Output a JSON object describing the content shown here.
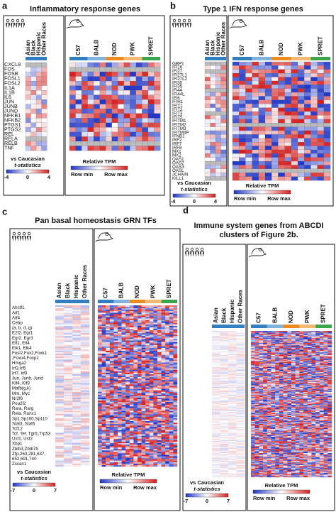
{
  "panels": [
    {
      "letter": "a",
      "title": [
        "Inflammatory response genes"
      ],
      "human_groups": [
        "Asian",
        "Black",
        "Hispanic",
        "Other Races"
      ],
      "mouse_groups": [
        "C57",
        "BALB",
        "NOD",
        "PWK",
        "SPRET"
      ],
      "genes": [
        "CXCL8",
        "FOS",
        "FOSB",
        "FOSL1",
        "FOSL2",
        "IL1A",
        "IL1B",
        "IL6",
        "JUN",
        "JUNB",
        "JUND",
        "NFKB1",
        "NFKB2",
        "PTGS1",
        "PTGS2",
        "REL",
        "RELA",
        "RELB",
        "TNF"
      ],
      "legend_human": {
        "caption": "vs Caucasian",
        "stat": "t-statistics",
        "ticks": [
          -4,
          0,
          4
        ]
      },
      "legend_mouse": {
        "caption": "Relative TPM",
        "min": "Row min",
        "max": "Row max"
      }
    },
    {
      "letter": "b",
      "title": [
        "Type 1 IFN response genes"
      ],
      "human_groups": [
        "Asian",
        "Black",
        "Hispanic",
        "Other Races"
      ],
      "mouse_groups": [
        "C57",
        "BALB",
        "NOD",
        "PWK",
        "SPRET"
      ],
      "genes": [
        "GBP1",
        "IFI16",
        "IFI27",
        "IFI27L1",
        "IFI27L2",
        "IFI30",
        "IFI35",
        "IFI44",
        "IFI44L",
        "IFI6",
        "IFIH1",
        "IFIT1",
        "IFIT2",
        "IFIT3",
        "IFIT5",
        "IFITM1",
        "IFITM2",
        "IFITM3",
        "IFITM4P",
        "IFNB1",
        "IRF2",
        "IRF7",
        "IRF8",
        "MX1",
        "MX2",
        "OAS1",
        "OAS2",
        "OAS3",
        "OASL",
        "JCHAIN",
        "KILL1"
      ],
      "legend_human": {
        "caption": "vs Caucasian",
        "stat": "t-statistics",
        "ticks": [
          -4,
          0,
          4
        ]
      },
      "legend_mouse": {
        "caption": "Relative TPM",
        "min": "Row min",
        "max": "Row max"
      }
    },
    {
      "letter": "c",
      "title": [
        "Pan basal homeostasis GRN TFs"
      ],
      "human_groups": [
        "Asian",
        "Black",
        "Hispanic",
        "Other Races"
      ],
      "mouse_groups": [
        "C57",
        "BALB",
        "NOD",
        "PWK",
        "SPRET"
      ],
      "genes": [
        "Ahctf1",
        "Atf1",
        "Atf4",
        "Cebp",
        "(a, b, d, g)",
        "E2f2, Egr1",
        "Egr2, Egr3",
        "Elf1, Elf4",
        "Elk1, Elk4",
        "Fosl2,Fox2,Foxk1",
        ",Foxo4,Foxp1",
        "Hmga2",
        "Irf3,Irf5",
        "Irf7, Irf9",
        "Jun, Junb, Jund",
        "Klf4, Klf9",
        "Mafb(g,k)",
        "Mnt, Myc",
        "Nr2f6",
        "Pou2f2",
        "Rara, Rarg",
        "Rela, Runx1",
        "Sp1,Sp100,Sp110",
        "Stat3, Stat6",
        "Tcf12",
        "Tcf, Tef, Tgif1,Trp53",
        "Usf1, Usf2",
        "Xbp1",
        "Zbtb3,Zbtb7b",
        "Zfp-263,281,637,",
        "652,691,740",
        "Zscan1"
      ],
      "legend_human": {
        "caption": "vs Caucasian",
        "stat": "t-statistics",
        "ticks": [
          -7,
          0,
          7
        ]
      },
      "legend_mouse": {
        "caption": "Relative TPM",
        "min": "Row min",
        "max": "Row max"
      }
    },
    {
      "letter": "d",
      "title": [
        "Immune system genes from ABCDI",
        "clusters of Figure 2b."
      ],
      "human_groups": [
        "Asian",
        "Black",
        "Hispanic",
        "Other Races"
      ],
      "mouse_groups": [
        "C57",
        "BALB",
        "NOD",
        "PWK",
        "SPRET"
      ],
      "genes": [],
      "legend_human": {
        "caption": "vs Caucasian",
        "stat": "t-statistics",
        "ticks": [
          -7,
          0,
          7
        ]
      },
      "legend_mouse": {
        "caption": "Relative TPM",
        "min": "Row min",
        "max": "Row max"
      }
    }
  ]
}
